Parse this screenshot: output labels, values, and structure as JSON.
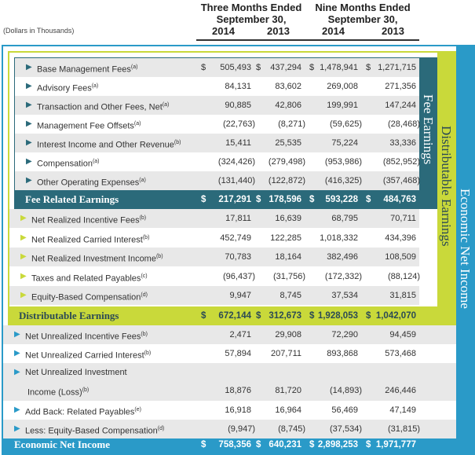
{
  "header": {
    "units": "(Dollars in Thousands)",
    "three_months": "Three Months Ended",
    "nine_months": "Nine Months Ended",
    "period": "September 30,",
    "y2014": "2014",
    "y2013": "2013"
  },
  "side_labels": {
    "fee_earnings": "Fee Earnings",
    "distributable_earnings": "Distributable Earnings",
    "economic_net_income": "Economic Net Income"
  },
  "currency": "$",
  "fee_rows": [
    {
      "label": "Base Management Fees",
      "note": "(a)",
      "v": [
        "505,493",
        "437,294",
        "1,478,941",
        "1,271,715"
      ]
    },
    {
      "label": "Advisory Fees",
      "note": "(a)",
      "v": [
        "84,131",
        "83,602",
        "269,008",
        "271,356"
      ]
    },
    {
      "label": "Transaction and Other Fees, Net",
      "note": "(a)",
      "v": [
        "90,885",
        "42,806",
        "199,991",
        "147,244"
      ]
    },
    {
      "label": "Management Fee Offsets",
      "note": "(a)",
      "v": [
        "(22,763)",
        "(8,271)",
        "(59,625)",
        "(28,468)"
      ]
    },
    {
      "label": "Interest Income and Other Revenue",
      "note": "(b)",
      "v": [
        "15,411",
        "25,535",
        "75,224",
        "33,336"
      ]
    },
    {
      "label": "Compensation",
      "note": "(a)",
      "v": [
        "(324,426)",
        "(279,498)",
        "(953,986)",
        "(852,952)"
      ]
    },
    {
      "label": "Other Operating Expenses",
      "note": "(a)",
      "v": [
        "(131,440)",
        "(122,872)",
        "(416,325)",
        "(357,468)"
      ]
    }
  ],
  "fee_total": {
    "label": "Fee Related Earnings",
    "v": [
      "217,291",
      "178,596",
      "593,228",
      "484,763"
    ]
  },
  "de_rows": [
    {
      "label": "Net Realized Incentive Fees",
      "note": "(b)",
      "v": [
        "17,811",
        "16,639",
        "68,795",
        "70,711"
      ]
    },
    {
      "label": "Net Realized Carried Interest",
      "note": "(b)",
      "v": [
        "452,749",
        "122,285",
        "1,018,332",
        "434,396"
      ]
    },
    {
      "label": "Net Realized Investment Income",
      "note": "(b)",
      "v": [
        "70,783",
        "18,164",
        "382,496",
        "108,509"
      ]
    },
    {
      "label": "Taxes and Related Payables",
      "note": "(c)",
      "v": [
        "(96,437)",
        "(31,756)",
        "(172,332)",
        "(88,124)"
      ]
    },
    {
      "label": "Equity-Based Compensation",
      "note": "(d)",
      "v": [
        "9,947",
        "8,745",
        "37,534",
        "31,815"
      ]
    }
  ],
  "de_total": {
    "label": "Distributable Earnings",
    "v": [
      "672,144",
      "312,673",
      "1,928,053",
      "1,042,070"
    ]
  },
  "eni_rows": [
    {
      "label": "Net Unrealized Incentive Fees",
      "note": "(b)",
      "v": [
        "2,471",
        "29,908",
        "72,290",
        "94,459"
      ]
    },
    {
      "label": "Net Unrealized Carried Interest",
      "note": "(b)",
      "v": [
        "57,894",
        "207,711",
        "893,868",
        "573,468"
      ]
    },
    {
      "label": "Net Unrealized Investment",
      "label2": "Income (Loss)",
      "note": "(b)",
      "v": [
        "18,876",
        "81,720",
        "(14,893)",
        "246,446"
      ]
    },
    {
      "label": "Add Back: Related Payables",
      "note": "(e)",
      "v": [
        "16,918",
        "16,964",
        "56,469",
        "47,149"
      ]
    },
    {
      "label": "Less: Equity-Based Compensation",
      "note": "(d)",
      "v": [
        "(9,947)",
        "(8,745)",
        "(37,534)",
        "(31,815)"
      ]
    }
  ],
  "eni_total": {
    "label": "Economic Net Income",
    "v": [
      "758,356",
      "640,231",
      "2,898,253",
      "1,971,777"
    ]
  },
  "colors": {
    "teal": "#2b6a7a",
    "green": "#c9d93a",
    "blue": "#2a9ac8"
  }
}
